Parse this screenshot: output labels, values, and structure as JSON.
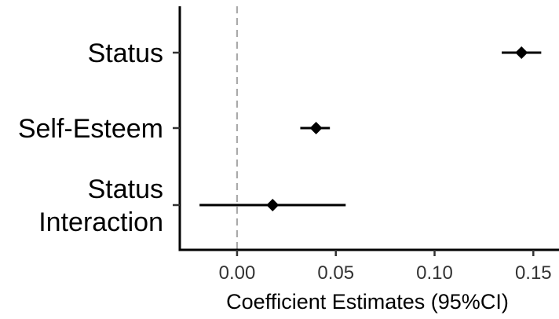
{
  "chart_data": {
    "type": "scatter",
    "subtype": "coefficient-plot",
    "xlabel": "Coefficient Estimates (95%CI)",
    "ylabel": "",
    "xlim": [
      -0.029,
      0.163
    ],
    "x_ticks": [
      0.0,
      0.05,
      0.1,
      0.15
    ],
    "x_tick_labels": [
      "0.00",
      "0.05",
      "0.10",
      "0.15"
    ],
    "reference_line": {
      "x": 0,
      "style": "dashed",
      "color": "#aaaaaa"
    },
    "grid": false,
    "categories": [
      {
        "lines": [
          "Status"
        ]
      },
      {
        "lines": [
          "Self-Esteem"
        ]
      },
      {
        "lines": [
          "Status",
          "Interaction"
        ]
      }
    ],
    "series": [
      {
        "estimates": [
          0.144,
          0.04,
          0.018
        ],
        "ci_lower": [
          0.134,
          0.032,
          -0.019
        ],
        "ci_upper": [
          0.154,
          0.047,
          0.055
        ],
        "color": "#000000",
        "marker": "diamond"
      }
    ]
  }
}
